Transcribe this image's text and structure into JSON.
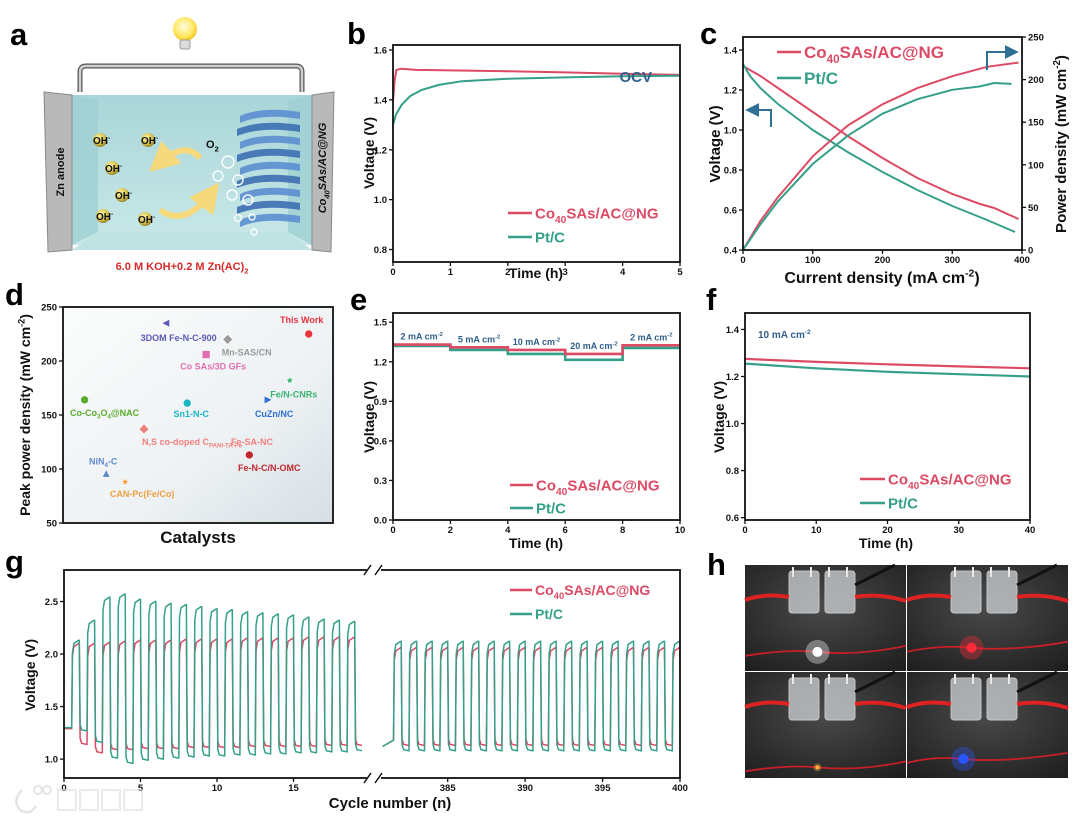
{
  "panel_labels": [
    "a",
    "b",
    "c",
    "d",
    "e",
    "f",
    "g",
    "h"
  ],
  "series_labels": {
    "co": [
      {
        "t": "Co"
      },
      {
        "t": "40",
        "s": "sub"
      },
      {
        "t": "SAs/AC@NG"
      }
    ],
    "pt": [
      {
        "t": "Pt/C"
      }
    ]
  },
  "colors": {
    "co": "#dc4a64",
    "pt": "#35a089",
    "axis": "#111111",
    "annotation": "#2f5f8a",
    "arrow": "#2f6f94",
    "caption": "#d42a2a"
  },
  "schematic": {
    "zn_anode": "Zn anode",
    "cathode": [
      {
        "t": "Co"
      },
      {
        "t": "40",
        "s": "sub"
      },
      {
        "t": "SAs/AC@NG"
      }
    ],
    "o2": [
      {
        "t": "O"
      },
      {
        "t": "2",
        "s": "sub"
      }
    ],
    "oh": [
      {
        "t": "OH"
      },
      {
        "t": "-",
        "s": "sup"
      }
    ],
    "oh_count": 6,
    "caption": [
      {
        "t": "6.0 M KOH+0.2 M Zn(AC)"
      },
      {
        "t": "2",
        "s": "sub"
      }
    ]
  },
  "chart_data": [
    {
      "id": "b",
      "type": "line",
      "title": "",
      "annotation": "OCV",
      "xlabel": [
        {
          "t": "Time (h)"
        }
      ],
      "ylabel": [
        {
          "t": "Voltage (V)"
        }
      ],
      "xlim": [
        0,
        5
      ],
      "ylim": [
        0.75,
        1.62
      ],
      "xticks": [
        0,
        1,
        2,
        3,
        4,
        5
      ],
      "yticks": [
        0.8,
        1.0,
        1.2,
        1.4,
        1.6
      ],
      "legend": "bottom-right",
      "series": [
        {
          "key": "co",
          "points": [
            [
              0,
              1.4
            ],
            [
              0.03,
              1.48
            ],
            [
              0.06,
              1.52
            ],
            [
              0.15,
              1.525
            ],
            [
              0.4,
              1.52
            ],
            [
              1,
              1.518
            ],
            [
              2,
              1.515
            ],
            [
              3,
              1.51
            ],
            [
              4,
              1.505
            ],
            [
              5,
              1.5
            ]
          ]
        },
        {
          "key": "pt",
          "points": [
            [
              0,
              1.3
            ],
            [
              0.05,
              1.34
            ],
            [
              0.15,
              1.38
            ],
            [
              0.3,
              1.415
            ],
            [
              0.5,
              1.44
            ],
            [
              0.8,
              1.46
            ],
            [
              1.2,
              1.475
            ],
            [
              2,
              1.485
            ],
            [
              3,
              1.49
            ],
            [
              4,
              1.495
            ],
            [
              5,
              1.497
            ]
          ]
        }
      ]
    },
    {
      "id": "c",
      "type": "line",
      "title": "",
      "xlabel": [
        {
          "t": "Current density (mA cm"
        },
        {
          "t": "-2",
          "s": "sup"
        },
        {
          "t": ")"
        }
      ],
      "ylabel": [
        {
          "t": "Voltage (V)"
        }
      ],
      "y2label": [
        {
          "t": "Power density (mW cm"
        },
        {
          "t": "-2",
          "s": "sup"
        },
        {
          "t": ")"
        }
      ],
      "xlim": [
        0,
        400
      ],
      "ylim": [
        0.4,
        1.465
      ],
      "y2lim": [
        0,
        250
      ],
      "xticks": [
        0,
        100,
        200,
        300,
        400
      ],
      "yticks": [
        0.4,
        0.6,
        0.8,
        1.0,
        1.2,
        1.4
      ],
      "y2ticks": [
        0,
        50,
        100,
        150,
        200,
        250
      ],
      "legend": "top-left",
      "series": [
        {
          "key": "co",
          "axis": "left",
          "points": [
            [
              0,
              1.32
            ],
            [
              25,
              1.27
            ],
            [
              50,
              1.21
            ],
            [
              100,
              1.09
            ],
            [
              150,
              0.97
            ],
            [
              200,
              0.86
            ],
            [
              250,
              0.76
            ],
            [
              300,
              0.68
            ],
            [
              340,
              0.63
            ],
            [
              360,
              0.61
            ],
            [
              395,
              0.555
            ]
          ]
        },
        {
          "key": "pt",
          "axis": "left",
          "points": [
            [
              0,
              1.33
            ],
            [
              10,
              1.27
            ],
            [
              25,
              1.21
            ],
            [
              50,
              1.13
            ],
            [
              100,
              1.0
            ],
            [
              150,
              0.89
            ],
            [
              200,
              0.79
            ],
            [
              250,
              0.7
            ],
            [
              300,
              0.62
            ],
            [
              350,
              0.55
            ],
            [
              390,
              0.49
            ]
          ]
        },
        {
          "key": "co",
          "axis": "right",
          "points": [
            [
              0,
              0
            ],
            [
              25,
              34
            ],
            [
              50,
              62
            ],
            [
              100,
              110
            ],
            [
              150,
              146
            ],
            [
              200,
              171
            ],
            [
              250,
              190
            ],
            [
              300,
              204
            ],
            [
              350,
              215
            ],
            [
              395,
              220
            ]
          ]
        },
        {
          "key": "pt",
          "axis": "right",
          "points": [
            [
              0,
              0
            ],
            [
              25,
              30
            ],
            [
              50,
              57
            ],
            [
              100,
              101
            ],
            [
              150,
              134
            ],
            [
              200,
              160
            ],
            [
              250,
              177
            ],
            [
              300,
              188
            ],
            [
              340,
              192
            ],
            [
              360,
              196
            ],
            [
              385,
              195
            ]
          ]
        }
      ]
    },
    {
      "id": "d",
      "type": "scatter",
      "title": "",
      "xlabel": [
        {
          "t": "Catalysts"
        }
      ],
      "ylabel": [
        {
          "t": "Peak power density (mW cm"
        },
        {
          "t": "-2",
          "s": "sup"
        },
        {
          "t": ")"
        }
      ],
      "xlim": [
        0,
        10
      ],
      "ylim": [
        50,
        250
      ],
      "yticks": [
        50,
        100,
        150,
        200,
        250
      ],
      "points": [
        {
          "label": [
            {
              "t": "This Work"
            }
          ],
          "x": 9.1,
          "y": 225,
          "color": "#e8323c",
          "marker": "circle"
        },
        {
          "label": [
            {
              "t": "3DOM Fe-N-C-900"
            }
          ],
          "x": 3.8,
          "y": 235,
          "color": "#5b5bb5",
          "marker": "triangle-left"
        },
        {
          "label": [
            {
              "t": "Mn-SAS/CN"
            }
          ],
          "x": 6.1,
          "y": 220,
          "color": "#9a9a9a",
          "marker": "diamond"
        },
        {
          "label": [
            {
              "t": "Co SAs/3D GFs"
            }
          ],
          "x": 5.3,
          "y": 206,
          "color": "#e070b0",
          "marker": "square"
        },
        {
          "label": [
            {
              "t": "Fe/N-CNRs"
            }
          ],
          "x": 8.4,
          "y": 182,
          "color": "#3cb371",
          "marker": "star"
        },
        {
          "label": [
            {
              "t": "Co-Co"
            },
            {
              "t": "3",
              "s": "sub"
            },
            {
              "t": "O"
            },
            {
              "t": "4",
              "s": "sub"
            },
            {
              "t": "@NAC"
            }
          ],
          "x": 0.8,
          "y": 164,
          "color": "#5aac2e",
          "marker": "circle"
        },
        {
          "label": [
            {
              "t": "Sn1-N-C"
            }
          ],
          "x": 4.6,
          "y": 161,
          "color": "#1bb5c8",
          "marker": "circle"
        },
        {
          "label": [
            {
              "t": "CuZn/NC"
            }
          ],
          "x": 7.6,
          "y": 164,
          "color": "#2f6fd0",
          "marker": "triangle-right"
        },
        {
          "label": [
            {
              "t": "N,S co-doped C"
            },
            {
              "t": "PANI-TA-Fe",
              "s": "sub"
            }
          ],
          "x": 3.0,
          "y": 137,
          "color": "#f08080",
          "marker": "diamond"
        },
        {
          "label": [
            {
              "t": "Fe-SA-NC"
            }
          ],
          "x": 3.0,
          "y": 137,
          "color": "#f08080",
          "marker": "diamond"
        },
        {
          "label": [
            {
              "t": "Fe-N-C/N-OMC"
            }
          ],
          "x": 6.9,
          "y": 113,
          "color": "#c0282e",
          "marker": "circle"
        },
        {
          "label": [
            {
              "t": "NiN"
            },
            {
              "t": "4",
              "s": "sub"
            },
            {
              "t": "-C"
            }
          ],
          "x": 1.6,
          "y": 96,
          "color": "#5f8ccc",
          "marker": "triangle-up"
        },
        {
          "label": [
            {
              "t": "CAN-Pc(Fe/Co)"
            }
          ],
          "x": 2.3,
          "y": 88,
          "color": "#f0a040",
          "marker": "star"
        }
      ]
    },
    {
      "id": "e",
      "type": "line",
      "title": "",
      "xlabel": [
        {
          "t": "Time (h)"
        }
      ],
      "ylabel": [
        {
          "t": "Voltage (V)"
        }
      ],
      "xlim": [
        0,
        10
      ],
      "ylim": [
        0,
        1.57
      ],
      "xticks": [
        0,
        2,
        4,
        6,
        8,
        10
      ],
      "yticks": [
        0.0,
        0.3,
        0.6,
        0.9,
        1.2,
        1.5
      ],
      "legend": "bottom-right",
      "steps": [
        {
          "x": [
            0,
            2
          ],
          "label": [
            {
              "t": "2 mA cm"
            },
            {
              "t": "-2",
              "s": "sup"
            }
          ],
          "co": 1.33,
          "pt": 1.32
        },
        {
          "x": [
            2,
            4
          ],
          "label": [
            {
              "t": "5 mA cm"
            },
            {
              "t": "-2",
              "s": "sup"
            }
          ],
          "co": 1.31,
          "pt": 1.29
        },
        {
          "x": [
            4,
            6
          ],
          "label": [
            {
              "t": "10 mA cm"
            },
            {
              "t": "-2",
              "s": "sup"
            }
          ],
          "co": 1.29,
          "pt": 1.26
        },
        {
          "x": [
            6,
            8
          ],
          "label": [
            {
              "t": "20 mA cm"
            },
            {
              "t": "-2",
              "s": "sup"
            }
          ],
          "co": 1.26,
          "pt": 1.215
        },
        {
          "x": [
            8,
            10
          ],
          "label": [
            {
              "t": "2 mA cm"
            },
            {
              "t": "-2",
              "s": "sup"
            }
          ],
          "co": 1.325,
          "pt": 1.305
        }
      ]
    },
    {
      "id": "f",
      "type": "line",
      "title": "",
      "annotation": [
        {
          "t": "10 mA cm"
        },
        {
          "t": "-2",
          "s": "sup"
        }
      ],
      "xlabel": [
        {
          "t": "Time (h)"
        }
      ],
      "ylabel": [
        {
          "t": "Voltage (V)"
        }
      ],
      "xlim": [
        0,
        40
      ],
      "ylim": [
        0.59,
        1.47
      ],
      "xticks": [
        0,
        10,
        20,
        30,
        40
      ],
      "yticks": [
        0.6,
        0.8,
        1.0,
        1.2,
        1.4
      ],
      "legend": "bottom-right",
      "series": [
        {
          "key": "co",
          "points": [
            [
              0,
              1.275
            ],
            [
              10,
              1.262
            ],
            [
              20,
              1.252
            ],
            [
              30,
              1.243
            ],
            [
              40,
              1.235
            ]
          ]
        },
        {
          "key": "pt",
          "points": [
            [
              0,
              1.255
            ],
            [
              10,
              1.235
            ],
            [
              20,
              1.22
            ],
            [
              30,
              1.21
            ],
            [
              40,
              1.2
            ]
          ]
        }
      ]
    },
    {
      "id": "g",
      "type": "line",
      "title": "",
      "xlabel": [
        {
          "t": "Cycle number (n)"
        }
      ],
      "ylabel": [
        {
          "t": "Voltage (V)"
        }
      ],
      "xlim_segments": [
        [
          0,
          20
        ],
        [
          380.5,
          400
        ]
      ],
      "ylim": [
        0.82,
        2.8
      ],
      "xticks_segments": [
        [
          0,
          5,
          10,
          15
        ],
        [
          385,
          390,
          395,
          400
        ]
      ],
      "yticks": [
        1.0,
        1.5,
        2.0,
        2.5
      ],
      "legend": "top-right",
      "cycles": {
        "left_start": 0.5,
        "right_start": 381.5,
        "ocv": {
          "co": 1.29,
          "pt": 1.3
        },
        "pt_charge_left": [
          2.13,
          2.32,
          2.54,
          2.57,
          2.52,
          2.5,
          2.48,
          2.47,
          2.45,
          2.43,
          2.42,
          2.4,
          2.39,
          2.38,
          2.37,
          2.35,
          2.33,
          2.32,
          2.31
        ],
        "pt_discharge_left": [
          1.27,
          1.16,
          1.01,
          0.96,
          0.99,
          1.0,
          1.01,
          1.02,
          1.03,
          1.03,
          1.04,
          1.04,
          1.05,
          1.05,
          1.06,
          1.06,
          1.07,
          1.07,
          1.08
        ],
        "co_charge_left": [
          2.1,
          2.1,
          2.11,
          2.12,
          2.13,
          2.13,
          2.13,
          2.14,
          2.14,
          2.14,
          2.14,
          2.15,
          2.15,
          2.15,
          2.15,
          2.16,
          2.16,
          2.16,
          2.16
        ],
        "co_discharge_left": [
          1.14,
          1.06,
          1.09,
          1.09,
          1.1,
          1.1,
          1.1,
          1.11,
          1.11,
          1.11,
          1.11,
          1.12,
          1.12,
          1.12,
          1.12,
          1.12,
          1.13,
          1.13,
          1.13
        ],
        "pt_charge_right": 2.12,
        "pt_discharge_right": 1.08,
        "co_charge_right": 2.06,
        "co_discharge_right": 1.13
      }
    }
  ],
  "photos": {
    "led_colors": [
      "#ffffff",
      "#ff2a3a",
      "#ffb040",
      "#2a55ff"
    ]
  },
  "watermark": "大数跨境"
}
